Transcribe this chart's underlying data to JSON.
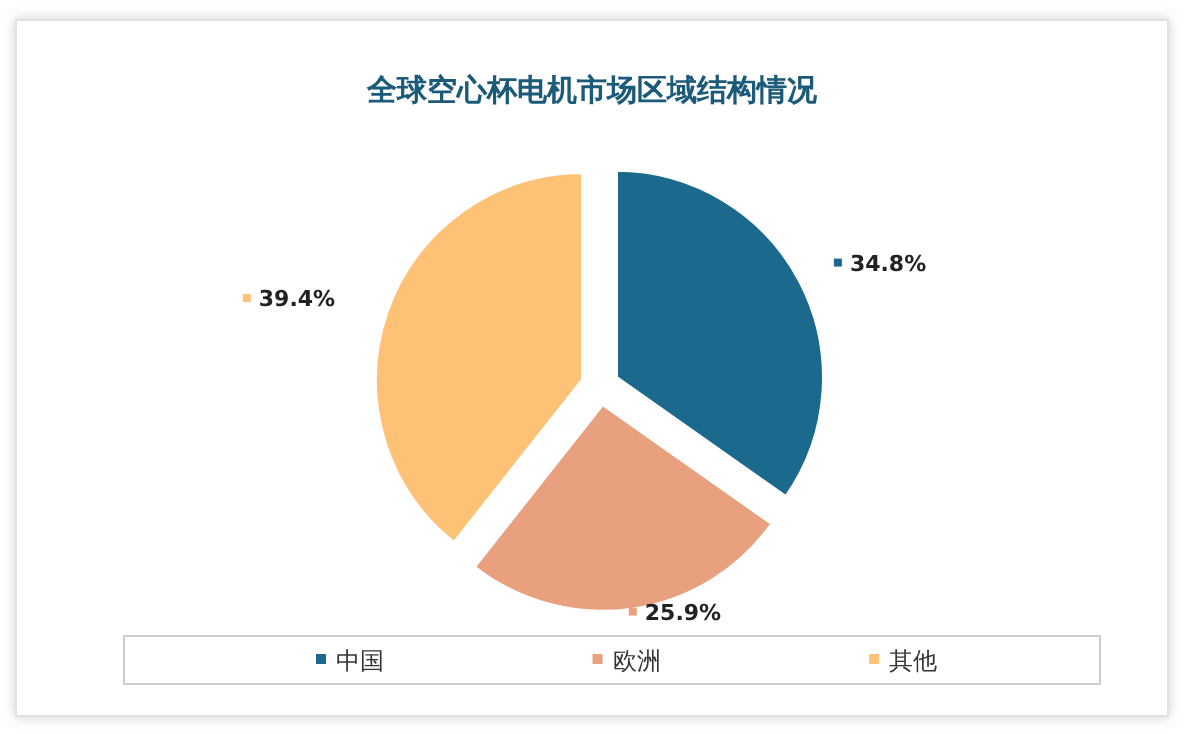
{
  "chart_data": {
    "type": "pie",
    "title": "全球空心杯电机市场区域结构情况",
    "categories": [
      "中国",
      "欧洲",
      "其他"
    ],
    "values": [
      34.8,
      25.9,
      39.4
    ],
    "colors": [
      "#1b6a8e",
      "#e8a07f",
      "#fec276"
    ],
    "value_labels": [
      "34.8%",
      "25.9%",
      "39.4%"
    ],
    "legend": "bottom"
  }
}
